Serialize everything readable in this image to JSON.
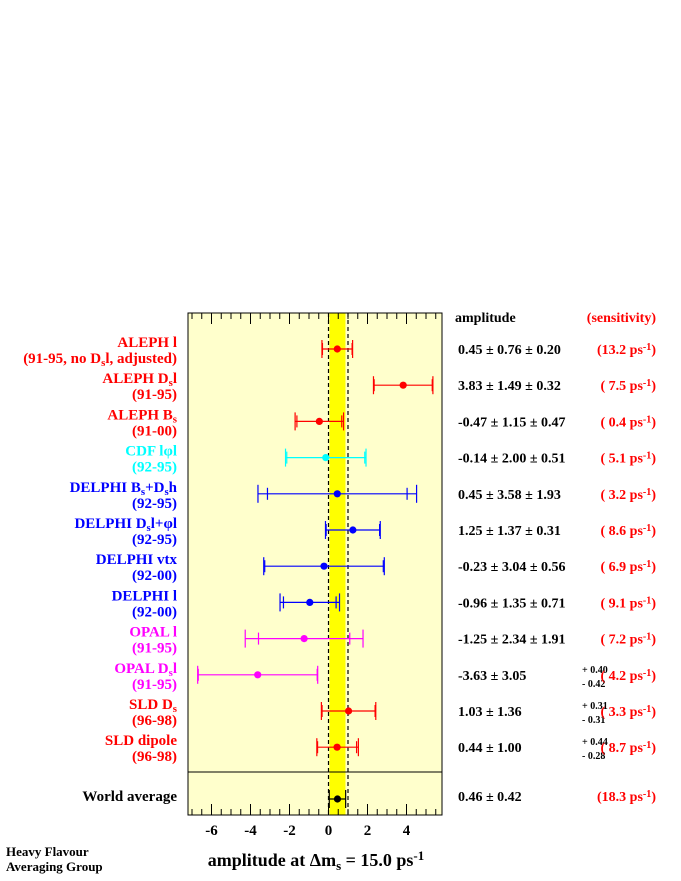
{
  "chart_data": {
    "type": "scatter",
    "xlabel": "amplitude at Δm",
    "xlabel_sub": "s",
    "xlabel_tail": " = 15.0 ps",
    "xlabel_sup": "-1",
    "xlim": [
      -7.2,
      5.8
    ],
    "xticks": [
      "-6",
      "-4",
      "-2",
      "0",
      "2",
      "4"
    ],
    "xtick_values": [
      -6,
      -4,
      -2,
      0,
      2,
      4
    ],
    "band": [
      0.05,
      0.87
    ],
    "reference_lines": [
      0,
      1
    ],
    "header_amplitude": "amplitude",
    "header_sensitivity": "(sensitivity)",
    "credit": [
      "Heavy Flavour",
      "Averaging Group"
    ],
    "measurements": [
      {
        "label": "ALEPH l",
        "label2": "(91-95, no D",
        "label2_sub": "s",
        "label2_tail": "l, adjusted)",
        "color": "#ff0000",
        "value": 0.45,
        "stat": 0.76,
        "syst": 0.2,
        "amp_text": "0.45 ± 0.76 ± 0.20",
        "sens": "(13.2 ps",
        "sens_sup": "-1",
        "sens_tail": ")"
      },
      {
        "label": "ALEPH D",
        "label_sub": "s",
        "label_tail": "l",
        "label2": "(91-95)",
        "color": "#ff0000",
        "value": 3.83,
        "stat": 1.49,
        "syst": 0.32,
        "amp_text": "3.83 ± 1.49 ± 0.32",
        "sens": "( 7.5 ps",
        "sens_sup": "-1",
        "sens_tail": ")"
      },
      {
        "label": "ALEPH B",
        "label_sub": "s",
        "label2": "(91-00)",
        "color": "#ff0000",
        "value": -0.47,
        "stat": 1.15,
        "syst": 0.47,
        "amp_text": "-0.47 ± 1.15 ± 0.47",
        "sens": "( 0.4 ps",
        "sens_sup": "-1",
        "sens_tail": ")"
      },
      {
        "label": "CDF lφl",
        "label2": "(92-95)",
        "color": "#00ffff",
        "value": -0.14,
        "stat": 2.0,
        "syst": 0.51,
        "amp_text": "-0.14 ± 2.00 ± 0.51",
        "sens": "( 5.1 ps",
        "sens_sup": "-1",
        "sens_tail": ")"
      },
      {
        "label": "DELPHI B",
        "label_sub": "s",
        "label_tail": "+D",
        "label_sub2": "s",
        "label_tail2": "h",
        "label2": "(92-95)",
        "color": "#0000ff",
        "value": 0.45,
        "stat": 3.58,
        "syst": 1.93,
        "amp_text": "0.45 ± 3.58 ± 1.93",
        "sens": "( 3.2 ps",
        "sens_sup": "-1",
        "sens_tail": ")"
      },
      {
        "label": "DELPHI D",
        "label_sub": "s",
        "label_tail": "l+φl",
        "label2": "(92-95)",
        "color": "#0000ff",
        "value": 1.25,
        "stat": 1.37,
        "syst": 0.31,
        "amp_text": "1.25 ± 1.37 ± 0.31",
        "sens": "( 8.6 ps",
        "sens_sup": "-1",
        "sens_tail": ")"
      },
      {
        "label": "DELPHI vtx",
        "label2": "(92-00)",
        "color": "#0000ff",
        "value": -0.23,
        "stat": 3.04,
        "syst": 0.56,
        "amp_text": "-0.23 ± 3.04 ± 0.56",
        "sens": "( 6.9 ps",
        "sens_sup": "-1",
        "sens_tail": ")"
      },
      {
        "label": "DELPHI l",
        "label2": "(92-00)",
        "color": "#0000ff",
        "value": -0.96,
        "stat": 1.35,
        "syst": 0.71,
        "amp_text": "-0.96 ± 1.35 ± 0.71",
        "sens": "( 9.1 ps",
        "sens_sup": "-1",
        "sens_tail": ")"
      },
      {
        "label": "OPAL l",
        "label2": "(91-95)",
        "color": "#ff00ff",
        "value": -1.25,
        "stat": 2.34,
        "syst": 1.91,
        "amp_text": "-1.25 ± 2.34 ± 1.91",
        "sens": "( 7.2 ps",
        "sens_sup": "-1",
        "sens_tail": ")"
      },
      {
        "label": "OPAL D",
        "label_sub": "s",
        "label_tail": "l",
        "label2": "(91-95)",
        "color": "#ff00ff",
        "value": -3.63,
        "stat": 3.05,
        "syst_up": 0.4,
        "syst_down": 0.42,
        "amp_text": "-3.63 ± 3.05",
        "asym_up": "+ 0.40",
        "asym_down": "- 0.42",
        "sens": "( 4.2 ps",
        "sens_sup": "-1",
        "sens_tail": ")"
      },
      {
        "label": "SLD D",
        "label_sub": "s",
        "label2": "(96-98)",
        "color": "#ff0000",
        "value": 1.03,
        "stat": 1.36,
        "syst_up": 0.31,
        "syst_down": 0.31,
        "amp_text": "1.03 ± 1.36",
        "asym_up": "+ 0.31",
        "asym_down": "- 0.31",
        "sens": "( 3.3 ps",
        "sens_sup": "-1",
        "sens_tail": ")"
      },
      {
        "label": "SLD dipole",
        "label2": "(96-98)",
        "color": "#ff0000",
        "value": 0.44,
        "stat": 1.0,
        "syst_up": 0.44,
        "syst_down": 0.28,
        "amp_text": "0.44 ± 1.00",
        "asym_up": "+ 0.44",
        "asym_down": "- 0.28",
        "sens": "( 8.7 ps",
        "sens_sup": "-1",
        "sens_tail": ")"
      }
    ],
    "world_average": {
      "label": "World average",
      "color": "#000000",
      "value": 0.46,
      "stat": 0.42,
      "amp_text": "0.46 ± 0.42",
      "sens": "(18.3 ps",
      "sens_sup": "-1",
      "sens_tail": ")"
    }
  }
}
